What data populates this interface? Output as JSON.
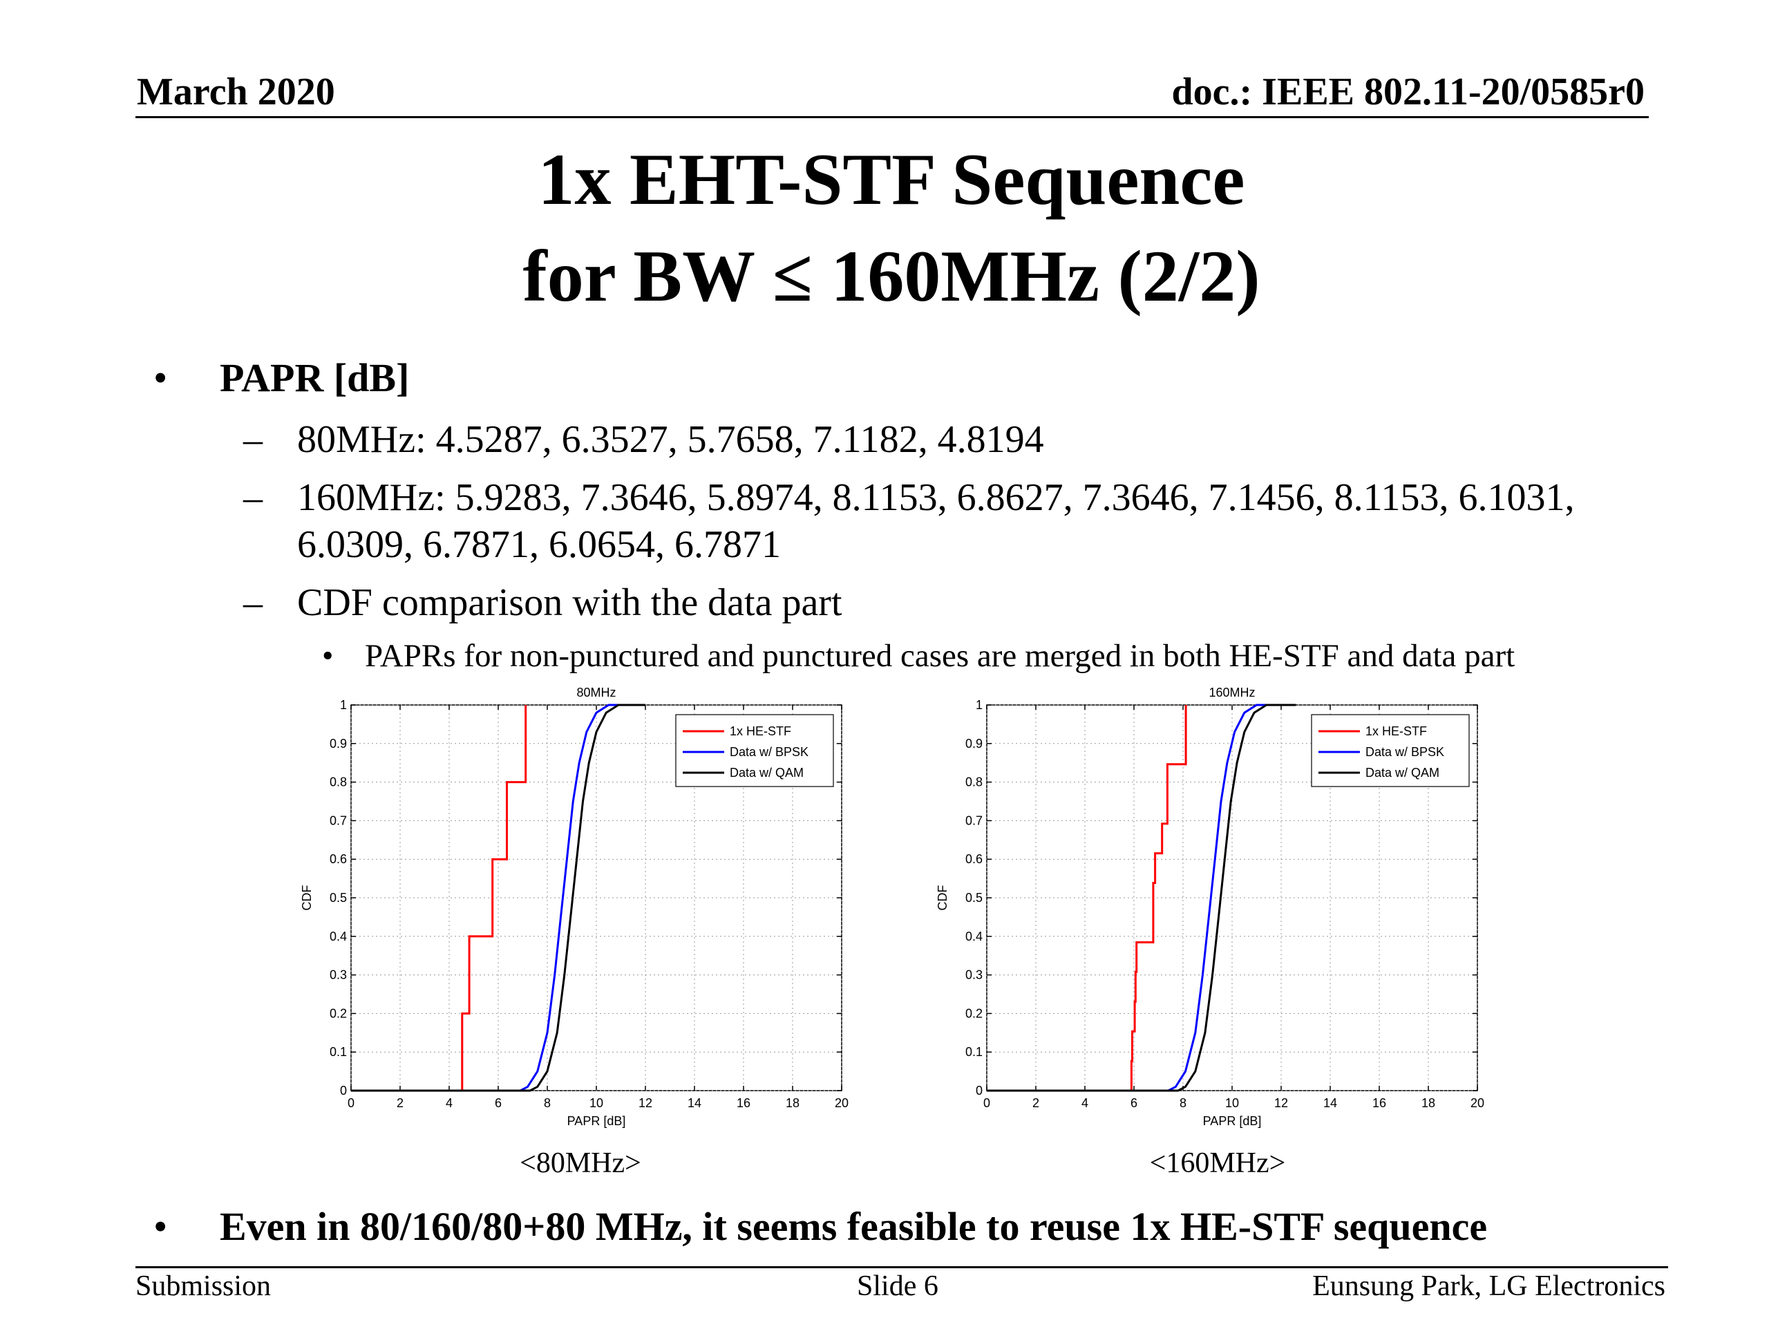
{
  "header": {
    "left": "March 2020",
    "right": "doc.: IEEE 802.11-20/0585r0"
  },
  "title": {
    "line1": "1x EHT-STF Sequence",
    "line2": "for BW ≤ 160MHz (2/2)"
  },
  "bullets": {
    "bullet_char": "•",
    "dash_char": "–",
    "papr_heading": "PAPR [dB]",
    "papr_80": "80MHz: 4.5287, 6.3527, 5.7658, 7.1182, 4.8194",
    "papr_160_line1": "160MHz: 5.9283, 7.3646, 5.8974, 8.1153, 6.8627, 7.3646, 7.1456, 8.1153, 6.1031,",
    "papr_160_line2": "6.0309, 6.7871, 6.0654, 6.7871",
    "cdf_comparison": "CDF comparison with the data part",
    "merge_note": "PAPRs for non-punctured and punctured cases are merged in both HE-STF and data part",
    "conclusion": "Even in 80/160/80+80 MHz, it seems feasible to reuse 1x HE-STF sequence"
  },
  "captions": {
    "left": "<80MHz>",
    "right": "<160MHz>"
  },
  "footer": {
    "left": "Submission",
    "center": "Slide 6",
    "right": "Eunsung Park, LG Electronics"
  },
  "chart_data": [
    {
      "type": "line",
      "title": "80MHz",
      "xlabel": "PAPR [dB]",
      "ylabel": "CDF",
      "xlim": [
        0,
        20
      ],
      "ylim": [
        0,
        1
      ],
      "x_ticks": [
        "0",
        "2",
        "4",
        "6",
        "8",
        "10",
        "12",
        "14",
        "16",
        "18",
        "20"
      ],
      "y_ticks": [
        "0",
        "0.1",
        "0.2",
        "0.3",
        "0.4",
        "0.5",
        "0.6",
        "0.7",
        "0.8",
        "0.9",
        "1"
      ],
      "grid": true,
      "legend_position": "top-right",
      "series": [
        {
          "name": "1x HE-STF",
          "color": "#ff0000",
          "step": true,
          "x": [
            4.5287,
            4.8194,
            5.7658,
            6.3527,
            7.1182
          ],
          "y": [
            0.2,
            0.4,
            0.6,
            0.8,
            1.0
          ]
        },
        {
          "name": "Data w/ BPSK",
          "color": "#0000ff",
          "x": [
            6.9,
            7.2,
            7.6,
            8.0,
            8.3,
            8.55,
            8.8,
            9.05,
            9.3,
            9.6,
            10.0,
            10.5,
            11.0
          ],
          "y": [
            0.0,
            0.01,
            0.05,
            0.15,
            0.3,
            0.45,
            0.6,
            0.75,
            0.85,
            0.93,
            0.98,
            1.0,
            1.0
          ]
        },
        {
          "name": "Data w/ QAM",
          "color": "#000000",
          "x": [
            7.3,
            7.6,
            8.0,
            8.4,
            8.7,
            8.95,
            9.2,
            9.45,
            9.7,
            10.0,
            10.4,
            10.9,
            12.0
          ],
          "y": [
            0.0,
            0.01,
            0.05,
            0.15,
            0.3,
            0.45,
            0.6,
            0.75,
            0.85,
            0.93,
            0.98,
            1.0,
            1.0
          ]
        }
      ]
    },
    {
      "type": "line",
      "title": "160MHz",
      "xlabel": "PAPR [dB]",
      "ylabel": "CDF",
      "xlim": [
        0,
        20
      ],
      "ylim": [
        0,
        1
      ],
      "x_ticks": [
        "0",
        "2",
        "4",
        "6",
        "8",
        "10",
        "12",
        "14",
        "16",
        "18",
        "20"
      ],
      "y_ticks": [
        "0",
        "0.1",
        "0.2",
        "0.3",
        "0.4",
        "0.5",
        "0.6",
        "0.7",
        "0.8",
        "0.9",
        "1"
      ],
      "grid": true,
      "legend_position": "top-right",
      "series": [
        {
          "name": "1x HE-STF",
          "color": "#ff0000",
          "step": true,
          "x": [
            5.8974,
            5.9283,
            6.0309,
            6.0654,
            6.1031,
            6.7871,
            6.8627,
            7.1456,
            7.3646,
            8.1153
          ],
          "y": [
            0.0769,
            0.1538,
            0.2308,
            0.3077,
            0.3846,
            0.5385,
            0.6154,
            0.6923,
            0.8462,
            1.0
          ]
        },
        {
          "name": "Data w/ BPSK",
          "color": "#0000ff",
          "x": [
            7.4,
            7.7,
            8.1,
            8.5,
            8.8,
            9.05,
            9.3,
            9.55,
            9.8,
            10.1,
            10.5,
            11.0,
            12.2
          ],
          "y": [
            0.0,
            0.01,
            0.05,
            0.15,
            0.3,
            0.45,
            0.6,
            0.75,
            0.85,
            0.93,
            0.98,
            1.0,
            1.0
          ]
        },
        {
          "name": "Data w/ QAM",
          "color": "#000000",
          "x": [
            7.8,
            8.1,
            8.5,
            8.9,
            9.2,
            9.45,
            9.7,
            9.95,
            10.2,
            10.5,
            10.9,
            11.4,
            12.6
          ],
          "y": [
            0.0,
            0.01,
            0.05,
            0.15,
            0.3,
            0.45,
            0.6,
            0.75,
            0.85,
            0.93,
            0.98,
            1.0,
            1.0
          ]
        }
      ]
    }
  ]
}
